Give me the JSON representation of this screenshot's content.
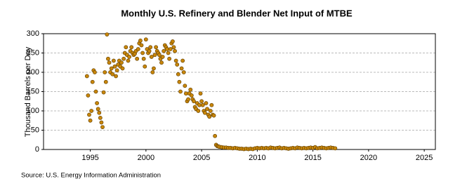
{
  "chart_data": {
    "type": "scatter",
    "title": "Monthly U.S. Refinery and Blender Net Input of MTBE",
    "y_label": "Thousand Barrels per Day",
    "source": "Source: U.S. Energy Information Administration",
    "color": "#c8860a",
    "grid": true,
    "xlim": [
      1990.8,
      2026
    ],
    "xticks": [
      1995,
      2000,
      2005,
      2010,
      2015,
      2020,
      2025
    ],
    "ylim": [
      0,
      300
    ],
    "yticks": [
      0,
      50,
      100,
      150,
      200,
      250,
      300
    ],
    "x": [
      1994.7,
      1994.8,
      1994.9,
      1995.0,
      1995.1,
      1995.2,
      1995.3,
      1995.4,
      1995.5,
      1995.6,
      1995.7,
      1995.8,
      1995.9,
      1996.0,
      1996.1,
      1996.2,
      1996.3,
      1996.4,
      1996.5,
      1996.6,
      1996.7,
      1996.8,
      1996.9,
      1997.0,
      1997.1,
      1997.2,
      1997.3,
      1997.4,
      1997.5,
      1997.6,
      1997.7,
      1997.8,
      1997.9,
      1998.0,
      1998.1,
      1998.2,
      1998.3,
      1998.4,
      1998.5,
      1998.6,
      1998.7,
      1998.8,
      1998.9,
      1999.0,
      1999.1,
      1999.2,
      1999.3,
      1999.4,
      1999.5,
      1999.6,
      1999.7,
      1999.8,
      1999.9,
      2000.0,
      2000.1,
      2000.2,
      2000.3,
      2000.4,
      2000.5,
      2000.6,
      2000.7,
      2000.8,
      2000.9,
      2001.0,
      2001.1,
      2001.2,
      2001.3,
      2001.4,
      2001.5,
      2001.6,
      2001.7,
      2001.8,
      2001.9,
      2002.0,
      2002.1,
      2002.2,
      2002.3,
      2002.4,
      2002.5,
      2002.6,
      2002.7,
      2002.8,
      2002.9,
      2003.0,
      2003.1,
      2003.2,
      2003.3,
      2003.4,
      2003.5,
      2003.6,
      2003.7,
      2003.8,
      2003.9,
      2004.0,
      2004.1,
      2004.2,
      2004.3,
      2004.4,
      2004.5,
      2004.6,
      2004.7,
      2004.8,
      2004.9,
      2005.0,
      2005.1,
      2005.2,
      2005.3,
      2005.4,
      2005.5,
      2005.6,
      2005.7,
      2005.8,
      2005.9,
      2006.0,
      2006.1,
      2006.2,
      2006.3,
      2006.4,
      2006.5,
      2006.6,
      2006.8,
      2007.0,
      2007.2,
      2007.4,
      2007.6,
      2007.8,
      2008.0,
      2008.2,
      2008.4,
      2008.6,
      2008.8,
      2009.0,
      2009.2,
      2009.4,
      2009.6,
      2009.8,
      2010.0,
      2010.2,
      2010.4,
      2010.6,
      2010.8,
      2011.0,
      2011.2,
      2011.4,
      2011.6,
      2011.8,
      2012.0,
      2012.2,
      2012.4,
      2012.6,
      2012.8,
      2013.0,
      2013.2,
      2013.4,
      2013.6,
      2013.8,
      2014.0,
      2014.2,
      2014.4,
      2014.6,
      2014.8,
      2015.0,
      2015.2,
      2015.4,
      2015.6,
      2015.8,
      2016.0,
      2016.2,
      2016.4,
      2016.6,
      2016.8,
      2017.0
    ],
    "values": [
      190,
      140,
      90,
      75,
      100,
      175,
      205,
      200,
      150,
      120,
      105,
      95,
      82,
      70,
      58,
      148,
      200,
      175,
      298,
      235,
      225,
      200,
      210,
      195,
      230,
      215,
      190,
      205,
      220,
      230,
      215,
      225,
      210,
      235,
      250,
      265,
      245,
      230,
      240,
      255,
      265,
      250,
      245,
      248,
      255,
      235,
      260,
      275,
      282,
      270,
      250,
      235,
      215,
      285,
      260,
      250,
      255,
      265,
      240,
      200,
      210,
      245,
      265,
      255,
      250,
      245,
      235,
      225,
      240,
      255,
      270,
      265,
      260,
      250,
      235,
      260,
      275,
      280,
      265,
      255,
      230,
      220,
      195,
      175,
      150,
      210,
      230,
      200,
      165,
      145,
      125,
      130,
      145,
      155,
      140,
      130,
      125,
      110,
      105,
      120,
      100,
      115,
      145,
      125,
      115,
      100,
      95,
      120,
      105,
      90,
      85,
      100,
      115,
      90,
      88,
      35,
      12,
      9,
      8,
      7,
      6,
      5,
      5,
      4,
      4,
      3,
      4,
      3,
      2,
      2,
      1,
      2,
      1,
      2,
      1,
      3,
      4,
      3,
      4,
      3,
      4,
      3,
      5,
      4,
      3,
      4,
      5,
      3,
      4,
      3,
      2,
      3,
      4,
      3,
      5,
      4,
      3,
      4,
      3,
      4,
      5,
      4,
      6,
      3,
      4,
      5,
      4,
      3,
      4,
      5,
      4,
      3
    ]
  }
}
